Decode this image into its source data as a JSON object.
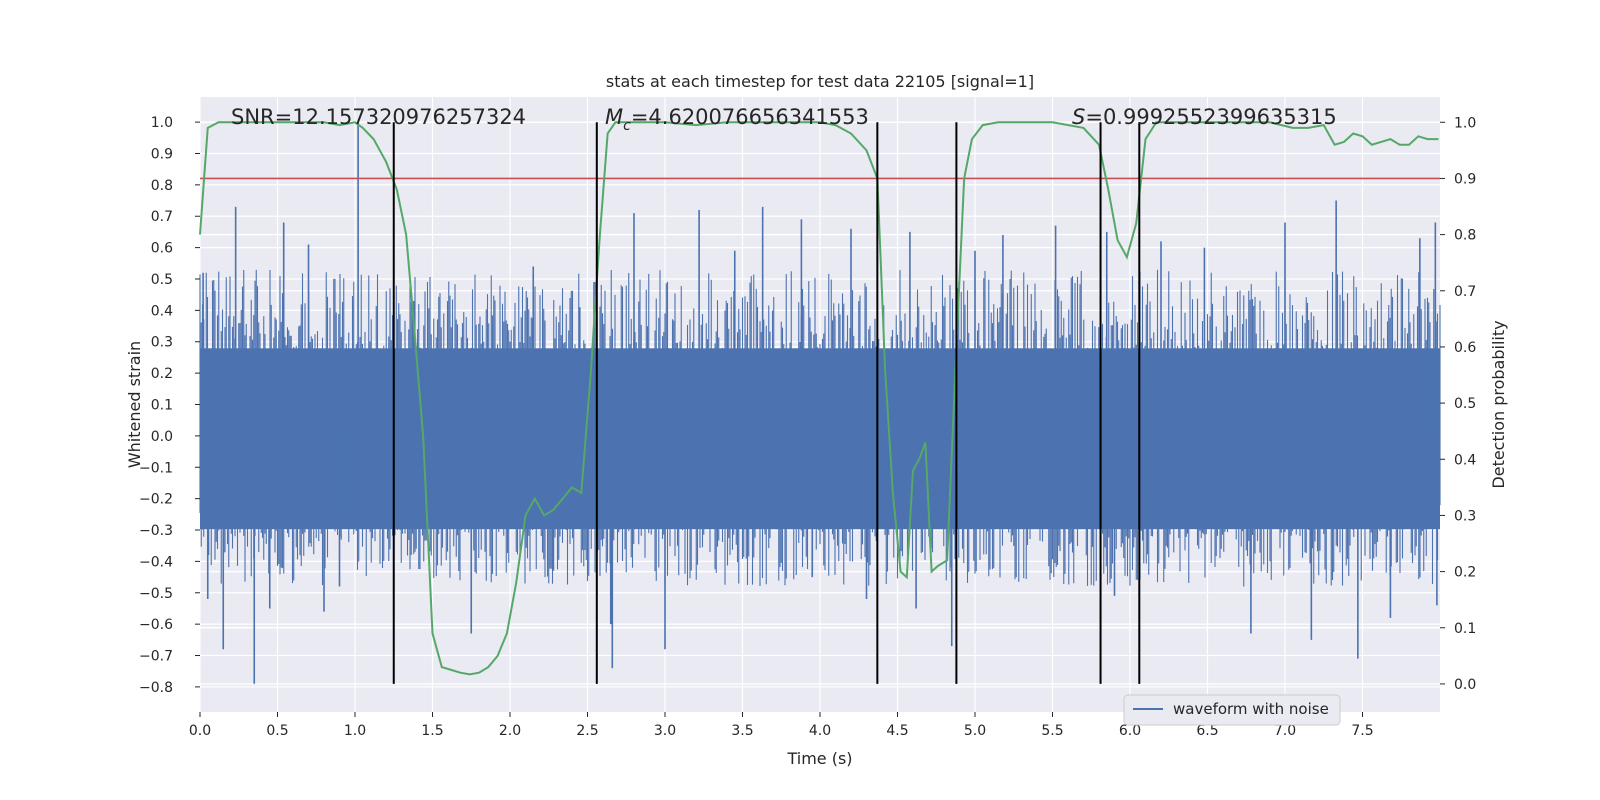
{
  "chart_data": {
    "type": "line",
    "title": "stats at each timestep for test data 22105 [signal=1]",
    "xlabel": "Time (s)",
    "ylabel_left": "Whitened strain",
    "ylabel_right": "Detection probability",
    "xlim": [
      0.0,
      8.0
    ],
    "ylim_left": [
      -0.88,
      1.08
    ],
    "ylim_right": [
      -0.05,
      1.045
    ],
    "x_ticks": [
      "0.0",
      "0.5",
      "1.0",
      "1.5",
      "2.0",
      "2.5",
      "3.0",
      "3.5",
      "4.0",
      "4.5",
      "5.0",
      "5.5",
      "6.0",
      "6.5",
      "7.0",
      "7.5"
    ],
    "y_ticks_left": [
      "1.0",
      "0.9",
      "0.8",
      "0.7",
      "0.6",
      "0.5",
      "0.4",
      "0.3",
      "0.2",
      "0.1",
      "0.0",
      "−0.1",
      "−0.2",
      "−0.3",
      "−0.4",
      "−0.5",
      "−0.6",
      "−0.7",
      "−0.8"
    ],
    "y_ticks_right": [
      "1.0",
      "0.9",
      "0.8",
      "0.7",
      "0.6",
      "0.5",
      "0.4",
      "0.3",
      "0.2",
      "0.1",
      "0.0"
    ],
    "grid": true,
    "legend_position": "lower-right",
    "annotations": {
      "snr": "SNR=12.157320976257324",
      "mc_symbol": "M",
      "mc_sub": "c",
      "mc_value": "=4.620076656341553",
      "s_symbol": "S",
      "s_value": "=0.9992552399635315"
    },
    "waveform": {
      "name": "waveform with noise",
      "color": "#4c72b0",
      "typical_positive_envelope": 0.45,
      "typical_negative_envelope": -0.35,
      "peaks": [
        [
          0.02,
          0.52
        ],
        [
          0.05,
          -0.52
        ],
        [
          0.23,
          0.73
        ],
        [
          0.15,
          -0.68
        ],
        [
          0.35,
          -0.79
        ],
        [
          0.54,
          0.68
        ],
        [
          0.45,
          -0.55
        ],
        [
          0.7,
          0.61
        ],
        [
          0.8,
          -0.56
        ],
        [
          1.02,
          1.0
        ],
        [
          0.9,
          -0.48
        ],
        [
          1.25,
          -0.59
        ],
        [
          1.38,
          0.43
        ],
        [
          1.75,
          -0.63
        ],
        [
          2.15,
          0.54
        ],
        [
          2.28,
          -0.43
        ],
        [
          2.45,
          0.41
        ],
        [
          2.66,
          -0.74
        ],
        [
          2.8,
          0.71
        ],
        [
          2.65,
          -0.6
        ],
        [
          3.0,
          -0.68
        ],
        [
          3.22,
          0.72
        ],
        [
          3.45,
          0.59
        ],
        [
          3.63,
          0.73
        ],
        [
          3.88,
          0.69
        ],
        [
          3.95,
          -0.45
        ],
        [
          4.2,
          0.66
        ],
        [
          4.3,
          -0.52
        ],
        [
          4.58,
          0.65
        ],
        [
          4.85,
          -0.67
        ],
        [
          4.62,
          -0.55
        ],
        [
          5.0,
          0.59
        ],
        [
          5.18,
          0.64
        ],
        [
          5.52,
          0.67
        ],
        [
          5.9,
          -0.51
        ],
        [
          5.85,
          0.65
        ],
        [
          6.2,
          0.62
        ],
        [
          6.48,
          0.6
        ],
        [
          6.78,
          -0.63
        ],
        [
          7.0,
          0.68
        ],
        [
          7.17,
          -0.65
        ],
        [
          7.33,
          0.75
        ],
        [
          7.47,
          -0.71
        ],
        [
          7.68,
          -0.58
        ],
        [
          7.87,
          0.63
        ],
        [
          7.97,
          0.68
        ],
        [
          7.98,
          -0.54
        ]
      ]
    },
    "detection_probability": {
      "color": "#55a868",
      "x": [
        0.0,
        0.05,
        0.12,
        0.2,
        0.3,
        0.4,
        0.5,
        0.6,
        0.7,
        0.8,
        0.9,
        1.0,
        1.05,
        1.12,
        1.2,
        1.27,
        1.33,
        1.38,
        1.44,
        1.5,
        1.56,
        1.62,
        1.68,
        1.74,
        1.8,
        1.86,
        1.92,
        1.98,
        2.04,
        2.1,
        2.16,
        2.22,
        2.28,
        2.34,
        2.4,
        2.46,
        2.52,
        2.58,
        2.63,
        2.68,
        2.75,
        2.85,
        3.0,
        3.2,
        3.4,
        3.6,
        3.8,
        4.0,
        4.1,
        4.2,
        4.3,
        4.37,
        4.42,
        4.47,
        4.52,
        4.56,
        4.6,
        4.64,
        4.68,
        4.72,
        4.76,
        4.82,
        4.88,
        4.93,
        4.98,
        5.05,
        5.15,
        5.3,
        5.5,
        5.7,
        5.8,
        5.86,
        5.92,
        5.98,
        6.04,
        6.1,
        6.17,
        6.25,
        6.35,
        6.5,
        6.7,
        6.9,
        7.05,
        7.15,
        7.25,
        7.32,
        7.38,
        7.44,
        7.5,
        7.56,
        7.62,
        7.68,
        7.74,
        7.8,
        7.86,
        7.92,
        7.99
      ],
      "y": [
        0.8,
        0.99,
        1.0,
        1.0,
        1.0,
        1.0,
        1.0,
        1.0,
        1.0,
        1.0,
        0.995,
        1.0,
        0.99,
        0.97,
        0.93,
        0.88,
        0.8,
        0.64,
        0.44,
        0.09,
        0.03,
        0.025,
        0.02,
        0.017,
        0.02,
        0.03,
        0.05,
        0.09,
        0.18,
        0.3,
        0.33,
        0.3,
        0.31,
        0.33,
        0.35,
        0.34,
        0.55,
        0.8,
        0.98,
        1.0,
        1.0,
        1.0,
        1.0,
        0.995,
        1.0,
        1.0,
        1.0,
        1.0,
        0.995,
        0.98,
        0.95,
        0.9,
        0.56,
        0.34,
        0.2,
        0.19,
        0.38,
        0.4,
        0.43,
        0.2,
        0.21,
        0.22,
        0.6,
        0.9,
        0.97,
        0.995,
        1.0,
        1.0,
        1.0,
        0.99,
        0.96,
        0.88,
        0.79,
        0.76,
        0.82,
        0.97,
        1.0,
        1.0,
        1.0,
        1.0,
        1.0,
        1.0,
        0.99,
        0.99,
        0.995,
        0.96,
        0.965,
        0.98,
        0.975,
        0.96,
        0.965,
        0.97,
        0.96,
        0.96,
        0.975,
        0.97,
        0.97
      ]
    },
    "threshold": {
      "color": "#c44e52",
      "value": 0.9
    },
    "event_lines": {
      "color": "#000000",
      "x": [
        1.25,
        2.56,
        4.37,
        4.88,
        5.81,
        6.06
      ]
    },
    "style": {
      "plot_bg": "#eaeaf2",
      "grid_color": "#ffffff"
    }
  }
}
